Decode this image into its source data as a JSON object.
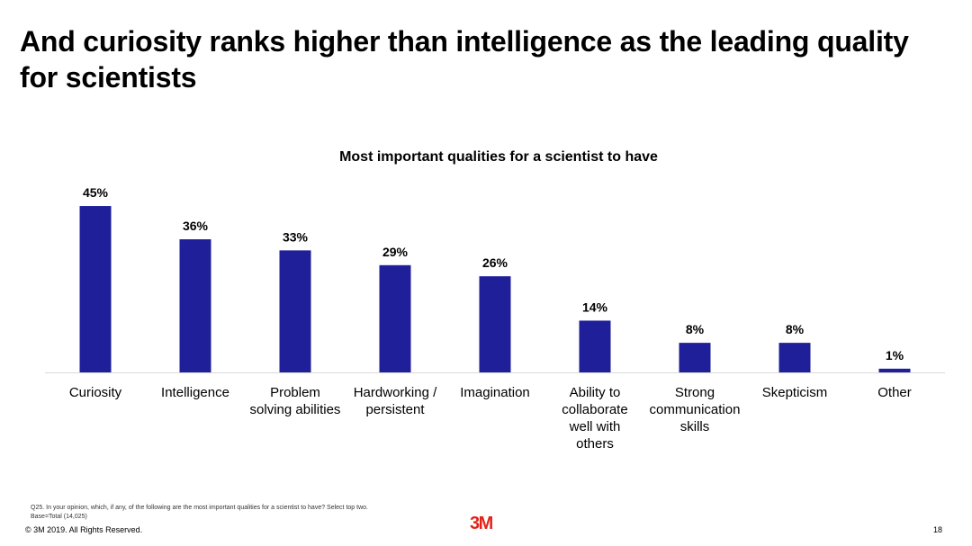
{
  "slide": {
    "title": "And curiosity ranks higher than intelligence as the leading quality for scientists"
  },
  "chart_data": {
    "type": "bar",
    "title": "Most important qualities for a scientist to have",
    "categories": [
      "Curiosity",
      "Intelligence",
      "Problem solving abilities",
      "Hardworking / persistent",
      "Imagination",
      "Ability to collaborate well with others",
      "Strong communication skills",
      "Skepticism",
      "Other"
    ],
    "category_lines": [
      [
        "Curiosity"
      ],
      [
        "Intelligence"
      ],
      [
        "Problem",
        "solving abilities"
      ],
      [
        "Hardworking /",
        "persistent"
      ],
      [
        "Imagination"
      ],
      [
        "Ability to",
        "collaborate",
        "well with",
        "others"
      ],
      [
        "Strong",
        "communication",
        "skills"
      ],
      [
        "Skepticism"
      ],
      [
        "Other"
      ]
    ],
    "values": [
      45,
      36,
      33,
      29,
      26,
      14,
      8,
      8,
      1
    ],
    "data_labels": [
      "45%",
      "36%",
      "33%",
      "29%",
      "26%",
      "14%",
      "8%",
      "8%",
      "1%"
    ],
    "unit": "%",
    "bar_color": "#1f1f9a",
    "grid": false,
    "legend": "none"
  },
  "footer": {
    "footnote_lines": [
      "Q25. In your opinion, which, if any, of the following are the most important qualities for a scientist to have? Select top two.",
      "Base=Total (14,025)"
    ],
    "copyright": "© 3M 2019.   All Rights Reserved.",
    "logo_text": "3M",
    "logo_color": "#e2231a",
    "page_number": "18"
  }
}
